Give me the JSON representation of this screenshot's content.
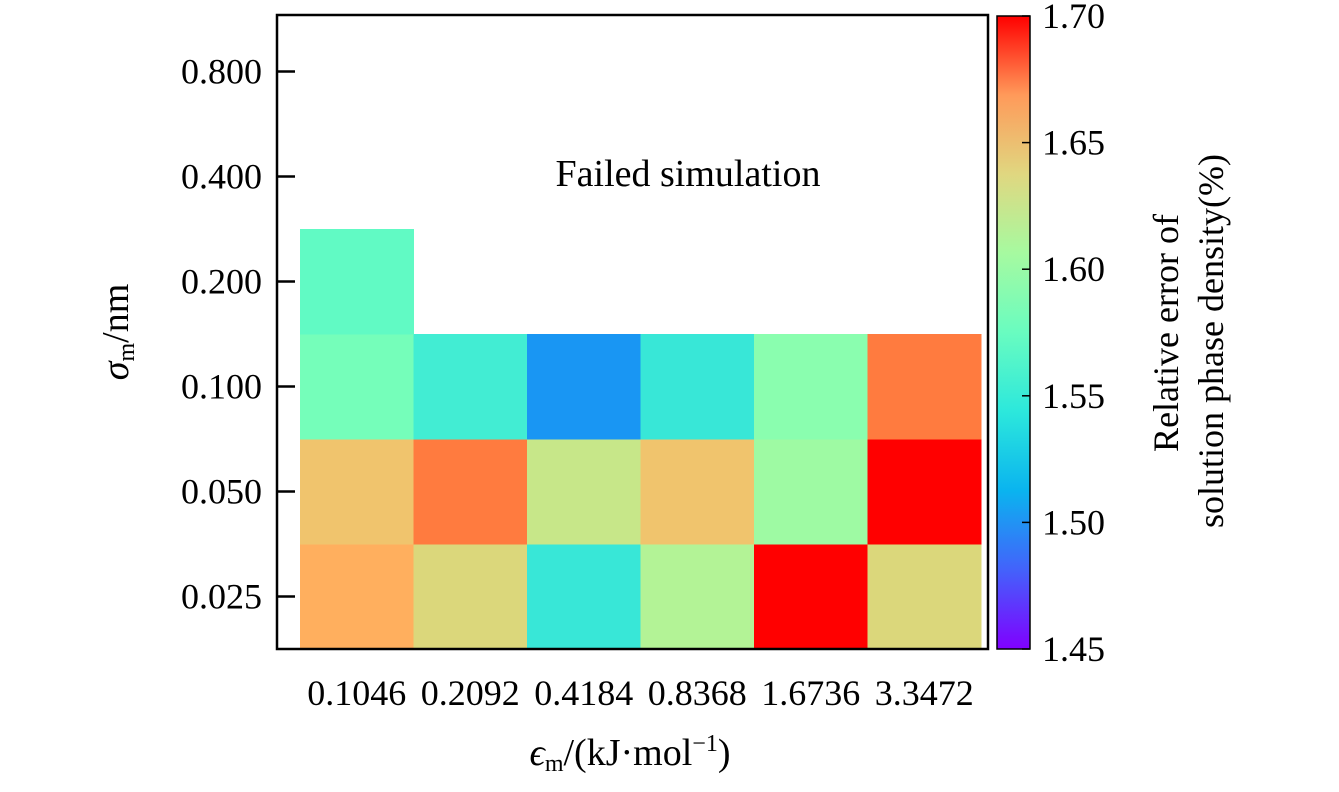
{
  "chart_data": {
    "type": "heatmap",
    "x_categories": [
      "0.1046",
      "0.2092",
      "0.4184",
      "0.8368",
      "1.6736",
      "3.3472"
    ],
    "y_categories": [
      "0.025",
      "0.050",
      "0.100",
      "0.200",
      "0.400",
      "0.800"
    ],
    "xlabel": {
      "base": "ϵ",
      "sub": "m",
      "rest": "/(kJ·mol",
      "sup": "−1",
      "close": ")"
    },
    "ylabel": {
      "base": "σ",
      "sub": "m",
      "rest": "/nm"
    },
    "annotation": "Failed simulation",
    "colorbar": {
      "title_line1": "Relative error of",
      "title_line2": "solution phase density(%)",
      "min": 1.45,
      "max": 1.7,
      "ticks": [
        "1.45",
        "1.50",
        "1.55",
        "1.60",
        "1.65",
        "1.70"
      ],
      "colormap": "rainbow"
    },
    "cells": [
      {
        "x": "0.1046",
        "y": "0.025",
        "value": 1.64
      },
      {
        "x": "0.2092",
        "y": "0.025",
        "value": 1.62
      },
      {
        "x": "0.4184",
        "y": "0.025",
        "value": 1.54
      },
      {
        "x": "0.8368",
        "y": "0.025",
        "value": 1.6
      },
      {
        "x": "1.6736",
        "y": "0.025",
        "value": 1.7
      },
      {
        "x": "3.3472",
        "y": "0.025",
        "value": 1.62
      },
      {
        "x": "0.1046",
        "y": "0.050",
        "value": 1.63
      },
      {
        "x": "0.2092",
        "y": "0.050",
        "value": 1.66
      },
      {
        "x": "0.4184",
        "y": "0.050",
        "value": 1.61
      },
      {
        "x": "0.8368",
        "y": "0.050",
        "value": 1.63
      },
      {
        "x": "1.6736",
        "y": "0.050",
        "value": 1.59
      },
      {
        "x": "3.3472",
        "y": "0.050",
        "value": 1.7
      },
      {
        "x": "0.1046",
        "y": "0.100",
        "value": 1.57
      },
      {
        "x": "0.2092",
        "y": "0.100",
        "value": 1.545
      },
      {
        "x": "0.4184",
        "y": "0.100",
        "value": 1.5
      },
      {
        "x": "0.8368",
        "y": "0.100",
        "value": 1.54
      },
      {
        "x": "1.6736",
        "y": "0.100",
        "value": 1.58
      },
      {
        "x": "3.3472",
        "y": "0.100",
        "value": 1.66
      },
      {
        "x": "0.1046",
        "y": "0.200",
        "value": 1.56
      }
    ]
  }
}
